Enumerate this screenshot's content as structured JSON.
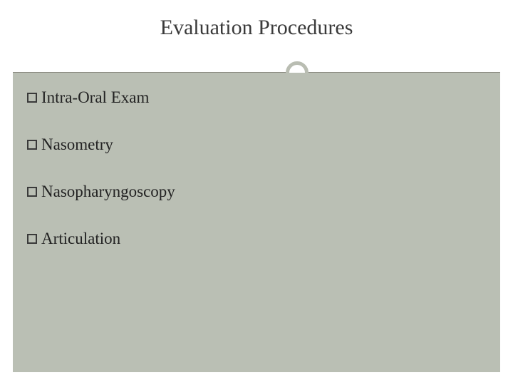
{
  "slide": {
    "title": "Evaluation Procedures",
    "title_fontsize": 30,
    "title_color": "#3a3a3a",
    "background_color": "#ffffff",
    "body_background_color": "#babfb4",
    "divider_line_color": "#8a8a80",
    "divider_circle_border_color": "#b9bdb2",
    "bullet_border_color": "#3a3a3a",
    "body_text_color": "#222222",
    "body_fontsize": 23,
    "items": [
      {
        "label": "Intra-Oral Exam"
      },
      {
        "label": "Nasometry"
      },
      {
        "label": "Nasopharyngoscopy"
      },
      {
        "label": "Articulation"
      }
    ]
  }
}
